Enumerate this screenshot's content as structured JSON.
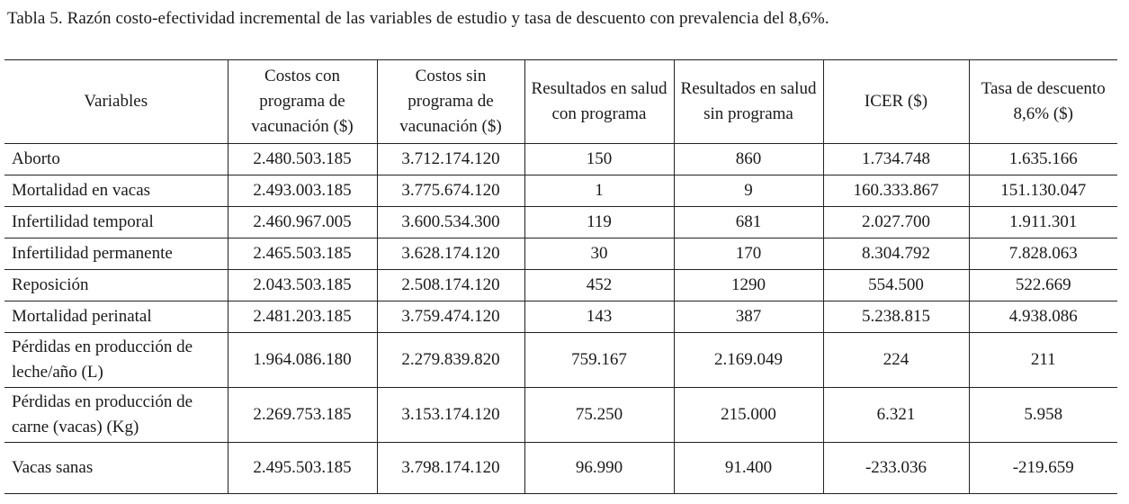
{
  "caption": "Tabla 5. Razón costo-efectividad incremental de las variables de estudio y tasa de descuento con prevalencia del 8,6%.",
  "headers": [
    "Variables",
    "Costos con programa de vacunación ($)",
    "Costos sin programa de vacunación ($)",
    "Resultados en salud con programa",
    "Resultados en salud sin programa",
    "ICER ($)",
    "Tasa de descuento 8,6% ($)"
  ],
  "rows": [
    [
      "Aborto",
      "2.480.503.185",
      "3.712.174.120",
      "150",
      "860",
      "1.734.748",
      "1.635.166"
    ],
    [
      "Mortalidad en vacas",
      "2.493.003.185",
      "3.775.674.120",
      "1",
      "9",
      "160.333.867",
      "151.130.047"
    ],
    [
      "Infertilidad temporal",
      "2.460.967.005",
      "3.600.534.300",
      "119",
      "681",
      "2.027.700",
      "1.911.301"
    ],
    [
      "Infertilidad permanente",
      "2.465.503.185",
      "3.628.174.120",
      "30",
      "170",
      "8.304.792",
      "7.828.063"
    ],
    [
      "Reposición",
      "2.043.503.185",
      "2.508.174.120",
      "452",
      "1290",
      "554.500",
      "522.669"
    ],
    [
      "Mortalidad perinatal",
      "2.481.203.185",
      "3.759.474.120",
      "143",
      "387",
      "5.238.815",
      "4.938.086"
    ],
    [
      "Pérdidas en producción de leche/año (L)",
      "1.964.086.180",
      "2.279.839.820",
      "759.167",
      "2.169.049",
      "224",
      "211"
    ],
    [
      "Pérdidas en producción de carne (vacas) (Kg)",
      "2.269.753.185",
      "3.153.174.120",
      "75.250",
      "215.000",
      "6.321",
      "5.958"
    ],
    [
      "Vacas sanas",
      "2.495.503.185",
      "3.798.174.120",
      "96.990",
      "91.400",
      "-233.036",
      "-219.659"
    ]
  ]
}
